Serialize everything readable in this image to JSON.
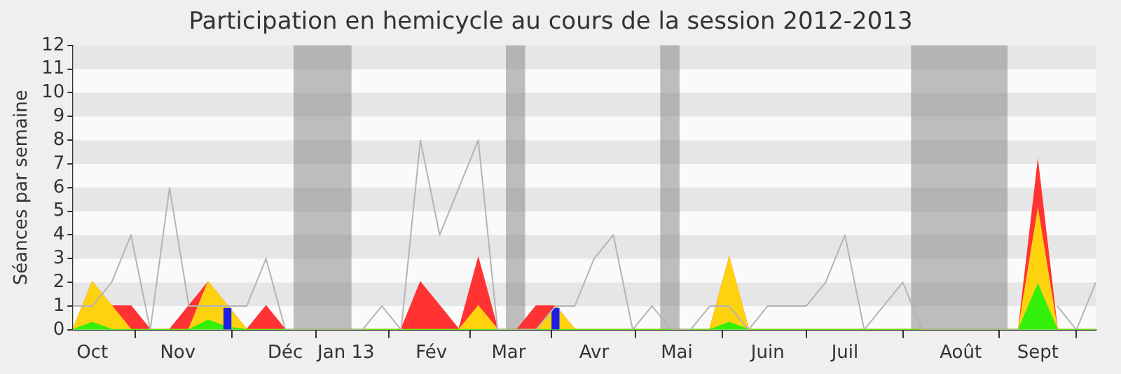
{
  "chart_data": {
    "type": "area",
    "title": "Participation en hemicycle au cours de la session 2012-2013",
    "ylabel": "Séances par semaine",
    "stacked": true,
    "legend": false,
    "x": [
      "2012-09-24",
      "2012-10-01",
      "2012-10-08",
      "2012-10-15",
      "2012-10-22",
      "2012-10-29",
      "2012-11-05",
      "2012-11-12",
      "2012-11-19",
      "2012-11-26",
      "2012-12-03",
      "2012-12-10",
      "2012-12-17",
      "2012-12-24",
      "2012-12-31",
      "2013-01-07",
      "2013-01-14",
      "2013-01-21",
      "2013-01-28",
      "2013-02-04",
      "2013-02-11",
      "2013-02-18",
      "2013-02-25",
      "2013-03-04",
      "2013-03-11",
      "2013-03-18",
      "2013-03-25",
      "2013-04-01",
      "2013-04-08",
      "2013-04-15",
      "2013-04-22",
      "2013-04-29",
      "2013-05-06",
      "2013-05-13",
      "2013-05-20",
      "2013-05-27",
      "2013-06-03",
      "2013-06-10",
      "2013-06-17",
      "2013-06-24",
      "2013-07-01",
      "2013-07-08",
      "2013-07-15",
      "2013-07-22",
      "2013-07-29",
      "2013-08-05",
      "2013-08-12",
      "2013-08-19",
      "2013-08-26",
      "2013-09-02",
      "2013-09-09",
      "2013-09-16",
      "2013-09-23",
      "2013-09-30"
    ],
    "xlim": [
      "2012-09-24",
      "2013-09-30"
    ],
    "xticks": [
      {
        "value": "2012-10-01",
        "label": "Oct"
      },
      {
        "value": "2012-11-01",
        "label": "Nov"
      },
      {
        "value": "2012-12-10",
        "label": "Déc"
      },
      {
        "value": "2013-01-01",
        "label": "Jan 13"
      },
      {
        "value": "2013-02-01",
        "label": "Fév"
      },
      {
        "value": "2013-03-01",
        "label": "Mar"
      },
      {
        "value": "2013-04-01",
        "label": "Avr"
      },
      {
        "value": "2013-05-01",
        "label": "Mai"
      },
      {
        "value": "2013-06-03",
        "label": "Juin"
      },
      {
        "value": "2013-07-01",
        "label": "Juil"
      },
      {
        "value": "2013-08-12",
        "label": "Août"
      },
      {
        "value": "2013-09-09",
        "label": "Sept"
      }
    ],
    "ylim": [
      0,
      12
    ],
    "yticks": [
      0,
      1,
      2,
      3,
      4,
      5,
      6,
      7,
      8,
      9,
      10,
      11,
      12
    ],
    "bands": [
      {
        "axis": "x",
        "from": "2012-12-13",
        "to": "2013-01-03",
        "color": "#808080"
      },
      {
        "axis": "x",
        "from": "2013-02-28",
        "to": "2013-03-07",
        "color": "#808080"
      },
      {
        "axis": "x",
        "from": "2013-04-25",
        "to": "2013-05-02",
        "color": "#808080"
      },
      {
        "axis": "x",
        "from": "2013-07-25",
        "to": "2013-08-29",
        "color": "#808080"
      }
    ],
    "series": [
      {
        "type": "line",
        "color": "#b4b4b4",
        "values": [
          1,
          1,
          2,
          4,
          0,
          6,
          1,
          1,
          1,
          1,
          3,
          0,
          0,
          0,
          0,
          0,
          1,
          0,
          8,
          4,
          6,
          8,
          0,
          0,
          0,
          1,
          1,
          3,
          4,
          0,
          1,
          0,
          0,
          1,
          1,
          0,
          1,
          1,
          1,
          2,
          4,
          0,
          1,
          2,
          0,
          0,
          0,
          0,
          0,
          0,
          null,
          1,
          0,
          2
        ]
      },
      {
        "color": "#33f00a",
        "values": [
          0,
          0.3,
          0,
          0,
          0,
          0,
          0,
          0.4,
          0.1,
          0,
          0,
          0,
          0,
          0,
          0,
          0,
          0,
          0,
          0,
          0,
          0,
          0,
          0,
          0,
          0,
          0,
          0,
          0,
          0,
          0,
          0,
          0,
          0,
          0,
          0.3,
          0,
          0,
          0,
          0,
          0,
          0,
          0,
          0,
          0,
          0,
          0,
          0,
          0,
          0,
          0,
          1.9,
          0,
          0,
          0
        ]
      },
      {
        "color": "#ffd20f",
        "values": [
          0,
          1.7,
          1,
          0,
          0,
          0,
          0,
          1.6,
          0.9,
          0,
          0,
          0,
          0,
          0,
          0,
          0,
          0,
          0,
          0,
          0,
          0,
          1,
          0,
          0,
          0,
          1,
          0,
          0,
          0,
          0,
          0,
          0,
          0,
          0,
          2.7,
          0,
          0,
          0,
          0,
          0,
          0,
          0,
          0,
          0,
          0,
          0,
          0,
          0,
          0,
          0,
          3.1,
          0,
          0,
          0
        ]
      },
      {
        "color": "#ff3333",
        "values": [
          0,
          0,
          0,
          1,
          0,
          0,
          1,
          0,
          0,
          0,
          1,
          0,
          0,
          0,
          0,
          0,
          0,
          0,
          2,
          1,
          0,
          2,
          0,
          0,
          1,
          0,
          0,
          0,
          0,
          0,
          0,
          0,
          0,
          0,
          0,
          0,
          0,
          0,
          0,
          0,
          0,
          0,
          0,
          0,
          0,
          0,
          0,
          0,
          0,
          0,
          2,
          0,
          0,
          0
        ]
      },
      {
        "type": "bar",
        "color": "#1e1ee6",
        "x": [
          "2012-11-19",
          "2013-03-18"
        ],
        "values": [
          0.9,
          0.9
        ]
      }
    ]
  }
}
